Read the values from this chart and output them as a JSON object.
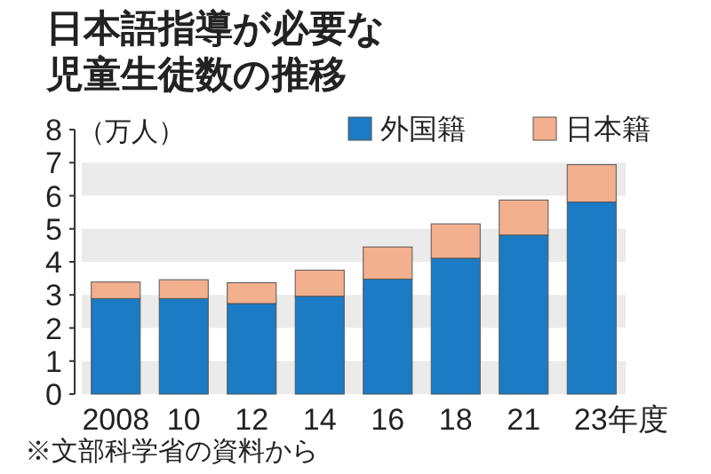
{
  "chart_data": {
    "type": "bar",
    "title": "日本語指導が必要な児童生徒数の推移",
    "ylabel": "（万人）",
    "categories": [
      "2008",
      "10",
      "12",
      "14",
      "16",
      "18",
      "21",
      "23年度"
    ],
    "series": [
      {
        "name": "外国籍",
        "color": "#1b7bc4",
        "values": [
          2.89,
          2.89,
          2.74,
          2.96,
          3.48,
          4.11,
          4.81,
          5.81
        ]
      },
      {
        "name": "日本籍",
        "color": "#f2b08f",
        "values": [
          0.5,
          0.57,
          0.63,
          0.79,
          0.97,
          1.04,
          1.06,
          1.13
        ]
      }
    ],
    "stacked": true,
    "ylim": [
      0,
      8
    ],
    "yticks": [
      0,
      1,
      2,
      3,
      4,
      5,
      6,
      7,
      8
    ],
    "legend": "top right",
    "bands": [
      {
        "axis": "y",
        "from": 0,
        "to": 1,
        "color": "#ebebeb"
      },
      {
        "axis": "y",
        "from": 2,
        "to": 3,
        "color": "#ebebeb"
      },
      {
        "axis": "y",
        "from": 4,
        "to": 5,
        "color": "#ebebeb"
      },
      {
        "axis": "y",
        "from": 6,
        "to": 7,
        "color": "#ebebeb"
      }
    ],
    "annotations": [
      "※文部科学省の資料から"
    ]
  }
}
